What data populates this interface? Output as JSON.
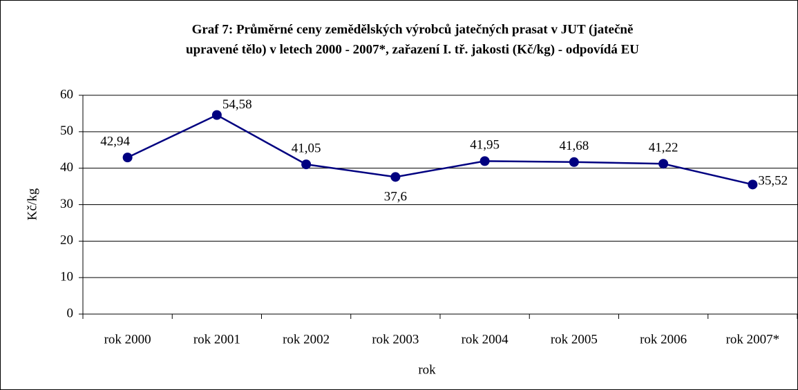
{
  "chart_data": {
    "type": "line",
    "title": [
      "Graf 7: Průměrné ceny zemědělských výrobců jatečných prasat v JUT (jatečně",
      "upravené tělo) v letech 2000 - 2007*, zařazení I. tř. jakosti (Kč/kg) - odpovídá EU"
    ],
    "x_label": "rok",
    "y_label": "Kč/kg",
    "categories": [
      "rok 2000",
      "rok 2001",
      "rok 2002",
      "rok 2003",
      "rok 2004",
      "rok 2005",
      "rok 2006",
      "rok 2007*"
    ],
    "series": [
      {
        "name": "Kč/kg",
        "color": "#000080",
        "values": [
          42.94,
          54.58,
          41.05,
          37.6,
          41.95,
          41.68,
          41.22,
          35.52
        ],
        "value_labels": [
          "42,94",
          "54,58",
          "41,05",
          "37,6",
          "41,95",
          "41,68",
          "41,22",
          "35,52"
        ]
      }
    ],
    "ylim": [
      0,
      60
    ],
    "yticks": [
      0,
      10,
      20,
      30,
      40,
      50,
      60
    ],
    "grid": true,
    "legend": false
  }
}
